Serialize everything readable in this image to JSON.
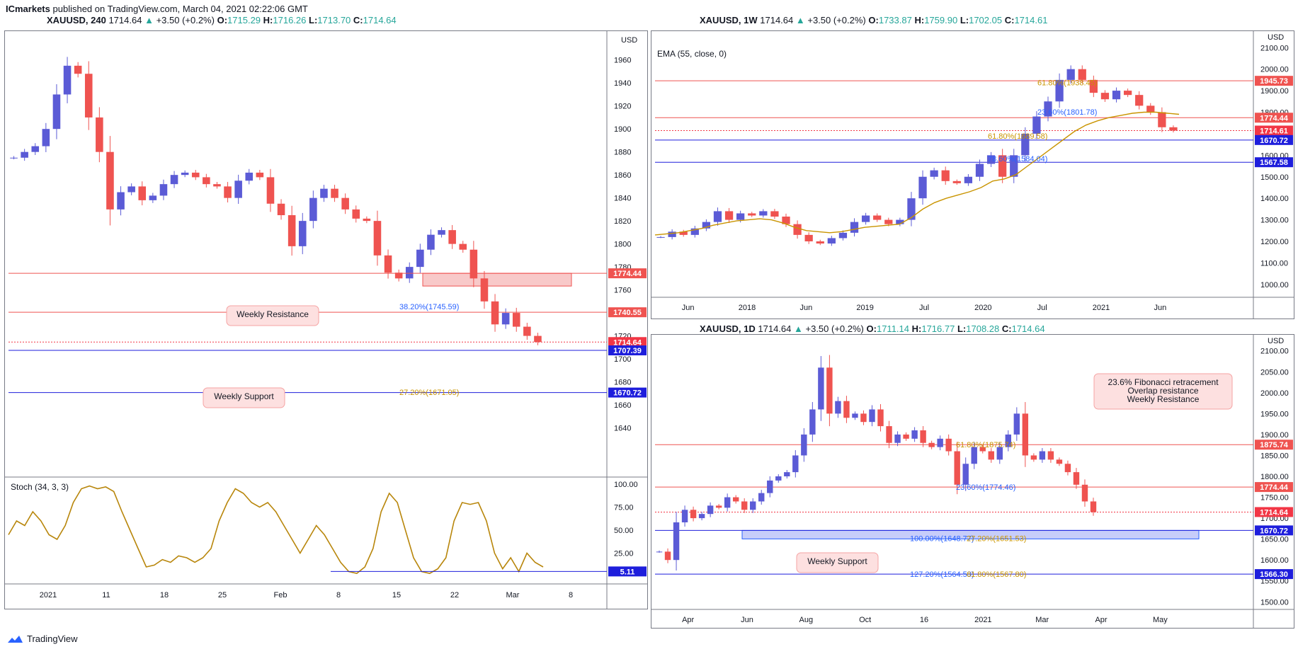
{
  "header": {
    "brand": "ICmarkets",
    "published": "published on TradingView.com, March 04, 2021 02:22:06 GMT"
  },
  "footer": {
    "brand": "TradingView"
  },
  "colors": {
    "resistance": "#ef5350",
    "support": "#2962ff",
    "up": "#5b5bd6",
    "down": "#ef5350",
    "fib": "#c99400",
    "stoch": "#b8860b",
    "price_tag": "#f23645",
    "support_tag": "#1e1edc"
  },
  "charts": [
    {
      "id": "h4",
      "symbol": "XAUUSD, 240",
      "last": "1714.64",
      "change": "+3.50 (+0.2%)",
      "o": "1715.29",
      "h": "1716.26",
      "l": "1713.70",
      "c": "1714.64",
      "currency": "USD",
      "indicator": "Stoch (34, 3, 3)",
      "annotations": {
        "resistance": "Weekly Resistance",
        "support": "Weekly Support"
      },
      "fib_labels": [
        "38.20%(1745.59)",
        "27.20%(1671.05)"
      ]
    },
    {
      "id": "w1",
      "symbol": "XAUUSD, 1W",
      "last": "1714.64",
      "change": "+3.50 (+0.2%)",
      "o": "1733.87",
      "h": "1759.90",
      "l": "1702.05",
      "c": "1714.61",
      "currency": "USD",
      "indicator": "EMA (55, close, 0)",
      "fib_labels": [
        "61.80%(1938.45)",
        "23.60%(1801.78)",
        "61.80%(1689.58)",
        "78.60%(1584.04)"
      ]
    },
    {
      "id": "d1",
      "symbol": "XAUUSD, 1D",
      "last": "1714.64",
      "change": "+3.50 (+0.2%)",
      "o": "1711.14",
      "h": "1716.77",
      "l": "1708.28",
      "c": "1714.64",
      "currency": "USD",
      "annotations": {
        "resistance": [
          "23.6% Fibonacci retracement",
          "Overlap resistance",
          "Weekly Resistance"
        ],
        "support": "Weekly Support"
      },
      "fib_labels": [
        "61.80%(1875.74)",
        "23.60%(1774.46)",
        "100.00%(1648.77)",
        "27.20%(1651.53)",
        "127.20%(1564.53)",
        "61.80%(1567.80)"
      ]
    }
  ],
  "chart_data": [
    {
      "type": "line",
      "title": "XAUUSD, 240",
      "ylim": [
        1628,
        1982
      ],
      "y_ticks": [
        1640,
        1660,
        1680,
        1700,
        1720,
        1740,
        1760,
        1780,
        1800,
        1820,
        1840,
        1860,
        1880,
        1900,
        1920,
        1940,
        1960,
        1980
      ],
      "x_ticks": [
        "2021",
        "11",
        "18",
        "25",
        "Feb",
        "8",
        "15",
        "22",
        "Mar",
        "8"
      ],
      "series": [
        {
          "values": [
            1875,
            1880,
            1885,
            1900,
            1930,
            1955,
            1948,
            1910,
            1880,
            1830,
            1845,
            1850,
            1838,
            1842,
            1852,
            1860,
            1862,
            1858,
            1852,
            1850,
            1840,
            1855,
            1862,
            1858,
            1835,
            1825,
            1798,
            1820,
            1840,
            1848,
            1840,
            1830,
            1822,
            1820,
            1790,
            1775,
            1770,
            1780,
            1795,
            1808,
            1812,
            1800,
            1795,
            1770,
            1750,
            1730,
            1740,
            1728,
            1720,
            1714.64
          ]
        }
      ],
      "levels": [
        {
          "label": "1774.44",
          "value": 1774.44,
          "kind": "resistance"
        },
        {
          "label": "1745.59",
          "value": 1745.59,
          "kind": "fib"
        },
        {
          "label": "1740.55",
          "value": 1740.55,
          "kind": "resistance"
        },
        {
          "label": "1714.64",
          "value": 1714.64,
          "kind": "price"
        },
        {
          "label": "1707.39",
          "value": 1707.39,
          "kind": "support"
        },
        {
          "label": "1671.05",
          "value": 1671.05,
          "kind": "fib"
        },
        {
          "label": "1670.72",
          "value": 1670.72,
          "kind": "support"
        }
      ]
    },
    {
      "type": "line",
      "title": "Stoch (34, 3, 3)",
      "ylim": [
        0,
        100
      ],
      "y_ticks": [
        "100.00",
        "75.00",
        "50.00",
        "25.00"
      ],
      "series": [
        {
          "values": [
            45,
            60,
            55,
            70,
            60,
            45,
            40,
            55,
            80,
            95,
            98,
            95,
            97,
            92,
            70,
            50,
            30,
            10,
            12,
            18,
            15,
            22,
            20,
            15,
            20,
            30,
            60,
            80,
            95,
            90,
            80,
            75,
            80,
            70,
            55,
            40,
            25,
            40,
            55,
            45,
            30,
            15,
            5,
            3,
            10,
            30,
            70,
            90,
            80,
            50,
            20,
            5,
            3,
            8,
            20,
            60,
            80,
            78,
            80,
            60,
            25,
            8,
            20,
            5,
            25,
            15,
            10
          ]
        }
      ],
      "levels": [
        {
          "label": "5.11",
          "value": 5.11,
          "kind": "support"
        }
      ]
    },
    {
      "type": "line",
      "title": "XAUUSD, 1W",
      "ylim": [
        960,
        2160
      ],
      "y_ticks": [
        "1000.00",
        "1100.00",
        "1200.00",
        "1300.00",
        "1400.00",
        "1500.00",
        "1600.00",
        "1700.00",
        "1800.00",
        "1900.00",
        "2000.00",
        "2100.00"
      ],
      "x_ticks": [
        "Jun",
        "2018",
        "Jun",
        "2019",
        "Jul",
        "2020",
        "Jul",
        "2021",
        "Jun"
      ],
      "series": [
        {
          "name": "price",
          "values": [
            1220,
            1245,
            1230,
            1260,
            1290,
            1340,
            1300,
            1330,
            1320,
            1340,
            1315,
            1280,
            1230,
            1200,
            1190,
            1215,
            1240,
            1290,
            1320,
            1300,
            1280,
            1300,
            1400,
            1500,
            1530,
            1480,
            1470,
            1500,
            1560,
            1600,
            1500,
            1600,
            1700,
            1780,
            1850,
            1950,
            2000,
            1950,
            1890,
            1860,
            1900,
            1880,
            1830,
            1800,
            1730,
            1714.61
          ]
        },
        {
          "name": "EMA (55, close, 0)",
          "values": [
            1230,
            1235,
            1240,
            1250,
            1260,
            1275,
            1285,
            1295,
            1300,
            1305,
            1300,
            1285,
            1265,
            1250,
            1245,
            1240,
            1245,
            1255,
            1265,
            1270,
            1275,
            1280,
            1310,
            1350,
            1380,
            1400,
            1415,
            1430,
            1450,
            1480,
            1490,
            1510,
            1550,
            1590,
            1630,
            1670,
            1710,
            1740,
            1760,
            1775,
            1785,
            1795,
            1800,
            1800,
            1795,
            1790
          ]
        }
      ],
      "levels": [
        {
          "label": "1945.73",
          "value": 1945.73,
          "kind": "resistance"
        },
        {
          "label": "1774.44",
          "value": 1774.44,
          "kind": "resistance"
        },
        {
          "label": "1714.61",
          "value": 1714.61,
          "kind": "price"
        },
        {
          "label": "1670.72",
          "value": 1670.72,
          "kind": "support"
        },
        {
          "label": "1567.58",
          "value": 1567.58,
          "kind": "support"
        }
      ]
    },
    {
      "type": "line",
      "title": "XAUUSD, 1D",
      "ylim": [
        1470,
        2130
      ],
      "y_ticks": [
        "1500.00",
        "1550.00",
        "1600.00",
        "1650.00",
        "1700.00",
        "1750.00",
        "1800.00",
        "1850.00",
        "1900.00",
        "1950.00",
        "2000.00",
        "2050.00",
        "2100.00"
      ],
      "x_ticks": [
        "Apr",
        "Jun",
        "Aug",
        "Oct",
        "16",
        "2021",
        "Mar",
        "Apr",
        "May"
      ],
      "series": [
        {
          "values": [
            1620,
            1600,
            1690,
            1720,
            1700,
            1710,
            1730,
            1725,
            1750,
            1740,
            1720,
            1740,
            1760,
            1790,
            1800,
            1810,
            1850,
            1900,
            1960,
            2060,
            1950,
            1980,
            1940,
            1950,
            1930,
            1960,
            1920,
            1880,
            1900,
            1890,
            1910,
            1880,
            1870,
            1890,
            1860,
            1780,
            1830,
            1870,
            1860,
            1840,
            1870,
            1900,
            1950,
            1850,
            1840,
            1860,
            1840,
            1830,
            1810,
            1780,
            1740,
            1714.64
          ]
        }
      ],
      "levels": [
        {
          "label": "1875.74",
          "value": 1875.74,
          "kind": "resistance"
        },
        {
          "label": "1774.44",
          "value": 1774.44,
          "kind": "resistance"
        },
        {
          "label": "1714.64",
          "value": 1714.64,
          "kind": "price"
        },
        {
          "label": "1670.72",
          "value": 1670.72,
          "kind": "support"
        },
        {
          "label": "1566.30",
          "value": 1566.3,
          "kind": "support"
        }
      ]
    }
  ]
}
